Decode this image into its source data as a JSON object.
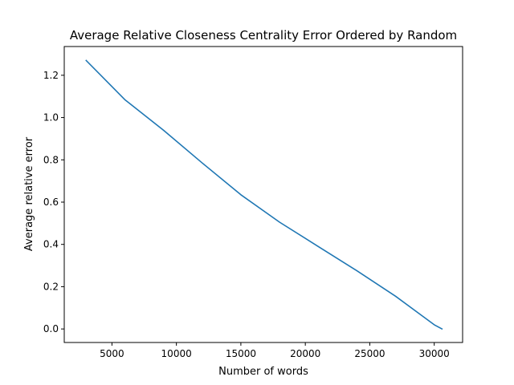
{
  "chart_data": {
    "type": "line",
    "title": "Average Relative Closeness Centrality Error Ordered by Random",
    "xlabel": "Number of words",
    "ylabel": "Average relative error",
    "xlim": [
      1300,
      32200
    ],
    "ylim": [
      -0.064,
      1.336
    ],
    "xticks": [
      5000,
      10000,
      15000,
      20000,
      25000,
      30000
    ],
    "xtick_labels": [
      "5000",
      "10000",
      "15000",
      "20000",
      "25000",
      "30000"
    ],
    "yticks": [
      0.0,
      0.2,
      0.4,
      0.6,
      0.8,
      1.0,
      1.2
    ],
    "ytick_labels": [
      "0.0",
      "0.2",
      "0.4",
      "0.6",
      "0.8",
      "1.0",
      "1.2"
    ],
    "grid": false,
    "series": [
      {
        "color": "#1f77b4",
        "x": [
          3000,
          6000,
          9000,
          12000,
          15000,
          18000,
          21000,
          24000,
          27000,
          29000,
          30000,
          30600
        ],
        "y": [
          1.27,
          1.085,
          0.94,
          0.785,
          0.635,
          0.505,
          0.39,
          0.275,
          0.155,
          0.065,
          0.02,
          0.0
        ]
      }
    ]
  }
}
